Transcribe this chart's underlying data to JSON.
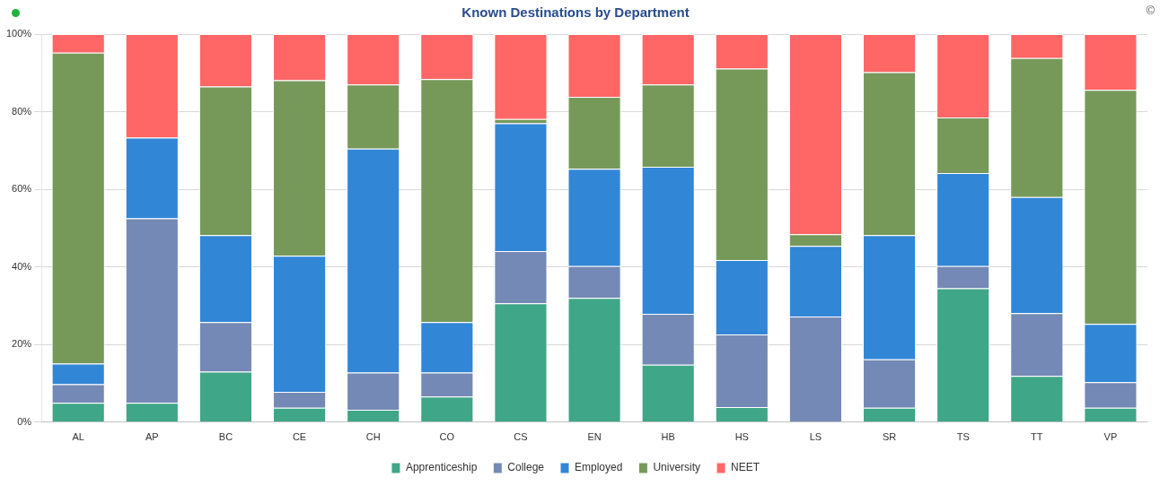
{
  "chart_data": {
    "type": "bar",
    "title": "Known Destinations by Department",
    "stacked": true,
    "categories": [
      "AL",
      "AP",
      "BC",
      "CE",
      "CH",
      "CO",
      "CS",
      "EN",
      "HB",
      "HS",
      "LS",
      "SR",
      "TS",
      "TT",
      "VP"
    ],
    "series": [
      {
        "name": "Apprenticeship",
        "color": "#3fa687",
        "values": [
          5,
          5,
          13,
          3.7,
          3.2,
          6.6,
          30.6,
          32,
          14.8,
          3.9,
          0,
          3.7,
          34.5,
          11.9,
          3.7
        ]
      },
      {
        "name": "College",
        "color": "#7489b5",
        "values": [
          4.8,
          47.5,
          12.8,
          4.1,
          9.6,
          6.2,
          13.5,
          8.2,
          13.1,
          18.7,
          27.2,
          12.5,
          5.7,
          16.2,
          6.6
        ]
      },
      {
        "name": "Employed",
        "color": "#3286d6",
        "values": [
          5.3,
          20.8,
          22.4,
          35.1,
          57.7,
          13,
          32.9,
          25.1,
          37.9,
          19.2,
          18.2,
          32,
          24,
          29.9,
          15
        ]
      },
      {
        "name": "University",
        "color": "#76995a",
        "values": [
          80.1,
          0,
          38.3,
          45.2,
          16.5,
          62.6,
          1.1,
          18.5,
          21.2,
          49.3,
          3,
          42,
          14.3,
          35.8,
          60.3
        ]
      },
      {
        "name": "NEET",
        "color": "#ff6666",
        "values": [
          4.8,
          26.7,
          13.5,
          11.9,
          13,
          11.6,
          21.9,
          16.2,
          13,
          8.9,
          51.6,
          9.8,
          21.5,
          6.2,
          14.4
        ]
      }
    ],
    "ylim": [
      0,
      100
    ],
    "yticks": [
      {
        "value": 0,
        "label": "0%"
      },
      {
        "value": 20,
        "label": "20%"
      },
      {
        "value": 40,
        "label": "40%"
      },
      {
        "value": 60,
        "label": "60%"
      },
      {
        "value": 80,
        "label": "80%"
      },
      {
        "value": 100,
        "label": "100%"
      }
    ],
    "grid": "y",
    "legend": "bottom",
    "annotations": [
      "©"
    ]
  }
}
